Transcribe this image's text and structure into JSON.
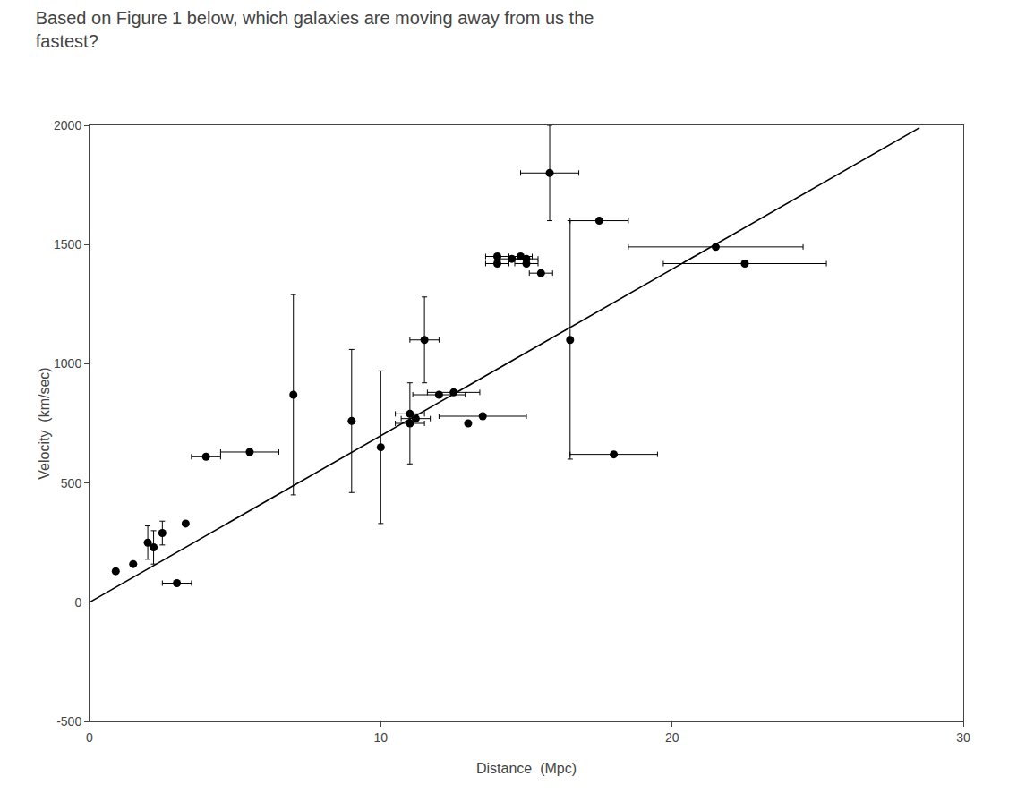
{
  "chart_data": {
    "type": "scatter",
    "title": "Based on Figure 1 below, which galaxies are moving away from us the\nfastest?",
    "xlabel": "Distance  (Mpc)",
    "ylabel": "Velocity  (km/sec)",
    "xlim": [
      0,
      30
    ],
    "ylim": [
      -500,
      2000
    ],
    "xticks": [
      0,
      10,
      20,
      30
    ],
    "yticks": [
      -500,
      0,
      500,
      1000,
      1500,
      2000
    ],
    "grid": false,
    "series": [
      {
        "type": "scatter",
        "color": "black",
        "marker": "circle",
        "x": [
          0.9,
          1.5,
          2.0,
          2.2,
          2.5,
          3.0,
          3.3,
          4.0,
          5.5,
          7.0,
          9.0,
          10.0,
          11.0,
          11.0,
          11.2,
          11.5,
          12.0,
          12.5,
          13.0,
          13.5,
          14.0,
          14.0,
          14.5,
          14.8,
          15.0,
          15.0,
          15.5,
          15.8,
          16.5,
          17.5,
          18.0,
          21.5,
          22.5
        ],
        "values": [
          130,
          160,
          250,
          230,
          290,
          80,
          330,
          610,
          630,
          870,
          760,
          650,
          750,
          790,
          770,
          1100,
          870,
          880,
          750,
          780,
          1450,
          1420,
          1440,
          1450,
          1420,
          1440,
          1380,
          1800,
          1100,
          1600,
          620,
          1490,
          1420
        ],
        "xerr": [
          0.0,
          0.0,
          0.0,
          0.0,
          0.0,
          0.5,
          0.0,
          0.5,
          1.0,
          0.0,
          0.0,
          0.0,
          0.5,
          0.5,
          0.5,
          0.5,
          0.9,
          0.9,
          0.0,
          1.5,
          0.4,
          0.4,
          0.4,
          0.4,
          0.4,
          0.4,
          0.4,
          1.0,
          0.0,
          1.0,
          1.5,
          3.0,
          2.8
        ],
        "yerr": [
          0,
          0,
          70,
          70,
          50,
          0,
          0,
          0,
          0,
          420,
          300,
          320,
          170,
          0,
          0,
          180,
          0,
          0,
          0,
          0,
          0,
          0,
          0,
          0,
          0,
          0,
          0,
          200,
          500,
          0,
          0,
          0,
          0
        ]
      },
      {
        "type": "line",
        "color": "black",
        "line_style": "solid",
        "x": [
          0,
          28.5
        ],
        "values": [
          0,
          1990
        ]
      }
    ]
  }
}
